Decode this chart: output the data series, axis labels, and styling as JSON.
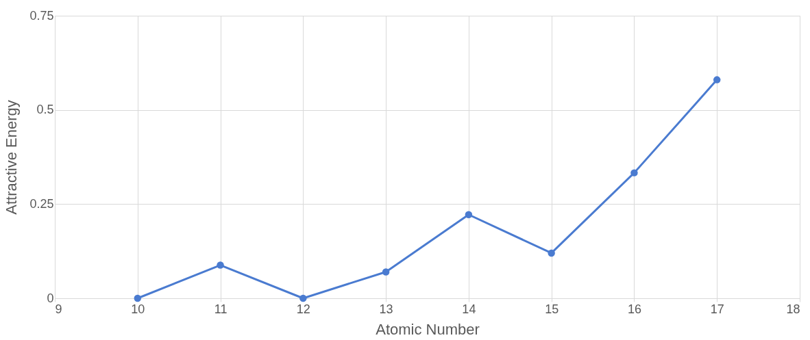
{
  "chart_data": {
    "type": "line",
    "xlabel": "Atomic Number",
    "ylabel": "Attractive Energy",
    "x": [
      10,
      11,
      12,
      13,
      14,
      15,
      16,
      17
    ],
    "series": [
      {
        "color": "#4a7bd0",
        "values": [
          0,
          0.088,
          0,
          0.07,
          0.222,
          0.12,
          0.333,
          0.58
        ]
      }
    ],
    "xlim": [
      9,
      18
    ],
    "xticks": [
      9,
      10,
      11,
      12,
      13,
      14,
      15,
      16,
      17,
      18
    ],
    "ylim": [
      0,
      0.75
    ],
    "yticks": [
      0,
      0.25,
      0.5,
      0.75
    ],
    "grid": true,
    "marker": "circle",
    "line_style": "solid"
  }
}
